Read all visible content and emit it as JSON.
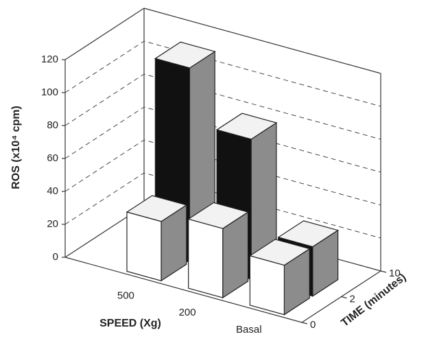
{
  "chart_data": {
    "type": "bar3d",
    "ylabel": "ROS (x10⁴ cpm)",
    "xlabel": "SPEED (Xg)",
    "zlabel": "TIME (minutes)",
    "categories": [
      "500",
      "200",
      "Basal"
    ],
    "zticks": [
      0,
      2,
      10
    ],
    "ylim": [
      0,
      120
    ],
    "yticks": [
      0,
      20,
      40,
      60,
      80,
      100,
      120
    ],
    "grid": true,
    "series": [
      {
        "z": 2,
        "color": "#ffffff",
        "values": [
          36,
          42,
          30
        ]
      },
      {
        "z": 10,
        "color": "#111111",
        "values": [
          118,
          85,
          30
        ]
      }
    ]
  }
}
